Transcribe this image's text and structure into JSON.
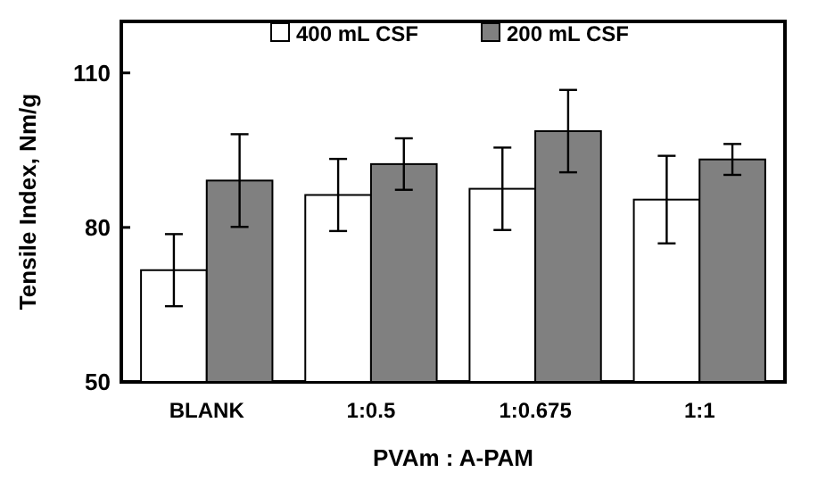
{
  "chart_data": {
    "type": "bar",
    "xlabel": "PVAm : A-PAM",
    "ylabel": "Tensile Index, Nm/g",
    "categories": [
      "BLANK",
      "1:0.5",
      "1:0.675",
      "1:1"
    ],
    "series": [
      {
        "name": "400 mL CSF",
        "color": "#ffffff",
        "values": [
          71.7,
          86.3,
          87.5,
          85.4
        ],
        "errors": [
          7,
          7,
          8,
          8.5
        ]
      },
      {
        "name": "200 mL CSF",
        "color": "#808080",
        "values": [
          89.1,
          92.3,
          98.7,
          93.2
        ],
        "errors": [
          9,
          5,
          8,
          3
        ]
      }
    ],
    "ylim": [
      50,
      120
    ],
    "yticks": [
      50,
      80,
      110
    ],
    "legend": "top"
  }
}
